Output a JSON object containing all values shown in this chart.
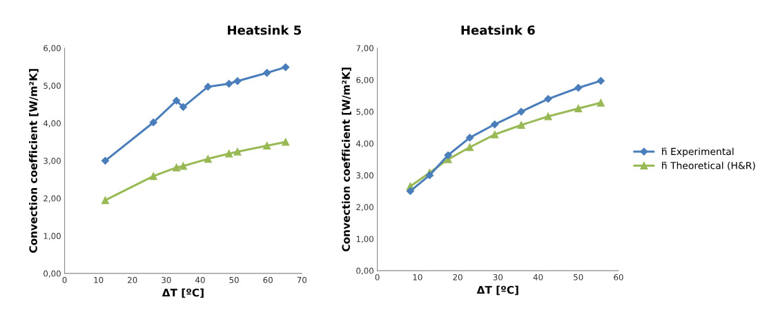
{
  "chart_data": [
    {
      "type": "line",
      "title": "Heatsink 5",
      "xlabel": "ΔT [ºC]",
      "ylabel": "Convection coefficient [W/m²K]",
      "xlim": [
        0,
        70
      ],
      "xticks": [
        0,
        10,
        20,
        30,
        40,
        50,
        60,
        70
      ],
      "ylim": [
        0,
        6
      ],
      "yticks": [
        {
          "value": 0,
          "label": "0,00"
        },
        {
          "value": 1,
          "label": "1,00"
        },
        {
          "value": 2,
          "label": "2,00"
        },
        {
          "value": 3,
          "label": "3,00"
        },
        {
          "value": 4,
          "label": "4,00"
        },
        {
          "value": 5,
          "label": "5,00"
        },
        {
          "value": 6,
          "label": "6,00"
        }
      ],
      "grid": false,
      "legend": false,
      "series": [
        {
          "color": "#4a7ebb",
          "marker": "diamond",
          "x": [
            12,
            26.2,
            33,
            35,
            42.3,
            48.5,
            51,
            59.7,
            65.2
          ],
          "values": [
            3.0,
            4.02,
            4.6,
            4.43,
            4.97,
            5.05,
            5.12,
            5.34,
            5.49
          ]
        },
        {
          "color": "#98b954",
          "marker": "triangle",
          "x": [
            12,
            26.2,
            33,
            35,
            42.3,
            48.5,
            51,
            59.7,
            65.2
          ],
          "values": [
            1.95,
            2.59,
            2.82,
            2.86,
            3.05,
            3.19,
            3.24,
            3.4,
            3.5
          ]
        }
      ]
    },
    {
      "type": "line",
      "title": "Heatsink 6",
      "xlabel": "ΔT [ºC]",
      "ylabel": "Convection coefficient [W/m²K]",
      "xlim": [
        0,
        60
      ],
      "xticks": [
        0,
        10,
        20,
        30,
        40,
        50,
        60
      ],
      "ylim": [
        0,
        7
      ],
      "yticks": [
        {
          "value": 0,
          "label": "0,00"
        },
        {
          "value": 1,
          "label": "1,00"
        },
        {
          "value": 2,
          "label": "2,00"
        },
        {
          "value": 3,
          "label": "3,00"
        },
        {
          "value": 4,
          "label": "4,00"
        },
        {
          "value": 5,
          "label": "5,00"
        },
        {
          "value": 6,
          "label": "6,00"
        },
        {
          "value": 7,
          "label": "7,00"
        }
      ],
      "grid": false,
      "legend": "right",
      "series": [
        {
          "name": "h̄ Experimental",
          "color": "#4a7ebb",
          "marker": "diamond",
          "x": [
            8.2,
            13,
            17.6,
            23,
            29.2,
            35.8,
            42.5,
            50,
            55.6
          ],
          "values": [
            2.5,
            3.0,
            3.63,
            4.18,
            4.6,
            5.0,
            5.4,
            5.75,
            5.97
          ]
        },
        {
          "name": "h̄ Theoretical (H&R)",
          "color": "#98b954",
          "marker": "triangle",
          "x": [
            8.2,
            13,
            17.6,
            23,
            29.2,
            35.8,
            42.5,
            50,
            55.6
          ],
          "values": [
            2.65,
            3.08,
            3.5,
            3.88,
            4.28,
            4.58,
            4.85,
            5.1,
            5.28
          ]
        }
      ]
    }
  ]
}
